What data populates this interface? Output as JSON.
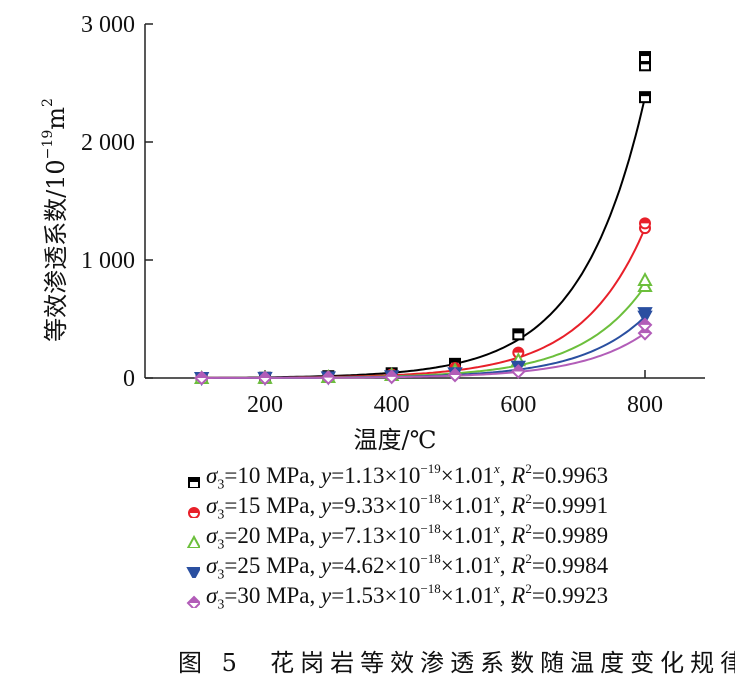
{
  "chart_data": {
    "type": "scatter",
    "title": "",
    "xlabel": "温度/℃",
    "ylabel": "等效渗透系数/10^-19 m^2",
    "ylabel_text": "等效渗透系数/10",
    "ylabel_exp": "−19",
    "ylabel_unit": "m",
    "ylabel_unit_exp": "2",
    "xlim": [
      80,
      900
    ],
    "ylim": [
      0,
      3000
    ],
    "xticks": [
      200,
      400,
      600,
      800
    ],
    "xtick_labels": [
      "200",
      "400",
      "600",
      "800"
    ],
    "yticks": [
      0,
      1000,
      2000,
      3000
    ],
    "ytick_labels": [
      "0",
      "1 000",
      "2 000",
      "3 000"
    ],
    "grid": false,
    "legend_position": "bottom",
    "x": [
      100,
      200,
      300,
      400,
      500,
      600,
      800
    ],
    "series": [
      {
        "name": "σ3=10 MPa",
        "pressure": "=10 MPa, ",
        "coef": "1.13",
        "exp": "−19",
        "r2": "0.9963",
        "color": "#000000",
        "marker": "square",
        "values": [
          0,
          2,
          15,
          40,
          120,
          370,
          2380
        ],
        "extra_800": [
          2650,
          2720
        ],
        "fit": {
          "a": 1.13e-19,
          "b": 1.01
        }
      },
      {
        "name": "σ3=15 MPa",
        "pressure": "=15 MPa, ",
        "coef": "9.33",
        "exp": "−18",
        "r2": "0.9991",
        "color": "#e8202a",
        "marker": "circle",
        "values": [
          0,
          1,
          10,
          30,
          85,
          215,
          1270
        ],
        "extra_800": [
          1310
        ],
        "fit": {
          "a": 9.33e-18,
          "b": 1.01
        }
      },
      {
        "name": "σ3=20 MPa",
        "pressure": "=20 MPa, ",
        "coef": "7.13",
        "exp": "−18",
        "r2": "0.9989",
        "color": "#6cbf3c",
        "marker": "triangle-up",
        "values": [
          0,
          1,
          8,
          25,
          65,
          150,
          780
        ],
        "extra_800": [
          830
        ],
        "fit": {
          "a": 7.13e-18,
          "b": 1.01
        }
      },
      {
        "name": "σ3=25 MPa",
        "pressure": "=25 MPa, ",
        "coef": "4.62",
        "exp": "−18",
        "r2": "0.9984",
        "color": "#2a4fa0",
        "marker": "triangle-down",
        "values": [
          0,
          1,
          5,
          15,
          40,
          95,
          520
        ],
        "extra_800": [
          550
        ],
        "fit": {
          "a": 4.62e-18,
          "b": 1.01
        }
      },
      {
        "name": "σ3=30 MPa",
        "pressure": "=30 MPa, ",
        "coef": "1.53",
        "exp": "−18",
        "r2": "0.9923",
        "color": "#b25db8",
        "marker": "diamond",
        "values": [
          0,
          0,
          3,
          10,
          25,
          55,
          380
        ],
        "extra_800": [
          450
        ],
        "fit": {
          "a": 1.53e-18,
          "b": 1.01
        }
      }
    ]
  },
  "caption": {
    "label": "图 5",
    "text": "花岗岩等效渗透系数随温度变化规律"
  }
}
